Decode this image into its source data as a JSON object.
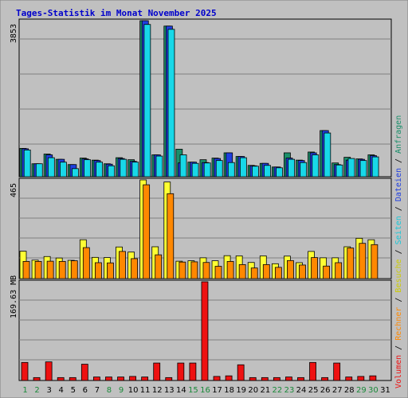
{
  "title": "Tages-Statistik im Monat November 2025",
  "colors": {
    "outer_bg": "#c0c0c0",
    "panel_bg": "#c0c0c0",
    "grid": "#808080",
    "title": "#0000cc",
    "anfragen": "#1a8f6a",
    "dateien": "#1f3fe0",
    "seiten": "#18d8e8",
    "besuche": "#ffff33",
    "rechner": "#ff8800",
    "volumen": "#ee1111",
    "day_weekday": "#000000",
    "day_weekend": "#1a8a3a"
  },
  "legend_right": {
    "volumen": "Volumen",
    "rechner": "Rechner",
    "besuche": "Besuche",
    "seiten": "Seiten",
    "dateien": "Dateien",
    "anfragen": "Anfragen",
    "sep": " / "
  },
  "chart_data": [
    {
      "type": "bar",
      "panel": "top",
      "ymax_label": "3853",
      "ylim": [
        0,
        3853
      ],
      "categories": [
        "1",
        "2",
        "3",
        "4",
        "5",
        "6",
        "7",
        "8",
        "9",
        "10",
        "11",
        "12",
        "13",
        "14",
        "15",
        "16",
        "17",
        "18",
        "19",
        "20",
        "21",
        "22",
        "23",
        "24",
        "25",
        "26",
        "27",
        "28",
        "29",
        "30",
        "31"
      ],
      "series": [
        {
          "name": "Anfragen",
          "values": [
            700,
            320,
            560,
            430,
            300,
            460,
            410,
            320,
            470,
            420,
            3853,
            540,
            3720,
            680,
            360,
            420,
            460,
            590,
            500,
            280,
            330,
            240,
            590,
            410,
            610,
            1140,
            340,
            480,
            440,
            540,
            0
          ]
        },
        {
          "name": "Dateien",
          "values": [
            690,
            320,
            540,
            430,
            300,
            440,
            400,
            310,
            450,
            380,
            3853,
            540,
            3720,
            340,
            360,
            350,
            450,
            590,
            500,
            270,
            330,
            240,
            460,
            400,
            590,
            1140,
            300,
            410,
            430,
            520,
            0
          ]
        },
        {
          "name": "Seiten",
          "values": [
            660,
            320,
            470,
            360,
            200,
            420,
            360,
            270,
            430,
            360,
            3760,
            510,
            3640,
            540,
            330,
            340,
            400,
            350,
            470,
            260,
            280,
            220,
            430,
            350,
            540,
            1080,
            290,
            450,
            400,
            490,
            0
          ]
        }
      ]
    },
    {
      "type": "bar",
      "panel": "middle",
      "ymax_label": "465",
      "ylim": [
        0,
        465
      ],
      "categories": [
        "1",
        "2",
        "3",
        "4",
        "5",
        "6",
        "7",
        "8",
        "9",
        "10",
        "11",
        "12",
        "13",
        "14",
        "15",
        "16",
        "17",
        "18",
        "19",
        "20",
        "21",
        "22",
        "23",
        "24",
        "25",
        "26",
        "27",
        "28",
        "29",
        "30",
        "31"
      ],
      "series": [
        {
          "name": "Besuche",
          "values": [
            129,
            87,
            104,
            97,
            86,
            183,
            100,
            99,
            149,
            125,
            465,
            150,
            455,
            82,
            84,
            98,
            84,
            108,
            107,
            76,
            107,
            70,
            106,
            75,
            128,
            98,
            98,
            150,
            190,
            183,
            0
          ]
        },
        {
          "name": "Rechner",
          "values": [
            81,
            81,
            82,
            81,
            84,
            146,
            75,
            74,
            128,
            94,
            442,
            112,
            400,
            78,
            79,
            76,
            58,
            81,
            66,
            50,
            66,
            53,
            85,
            64,
            99,
            59,
            75,
            144,
            166,
            160,
            0
          ]
        }
      ]
    },
    {
      "type": "bar",
      "panel": "bottom",
      "ymax_label": "169.63 MB",
      "ylim": [
        0,
        169.63
      ],
      "categories": [
        "1",
        "2",
        "3",
        "4",
        "5",
        "6",
        "7",
        "8",
        "9",
        "10",
        "11",
        "12",
        "13",
        "14",
        "15",
        "16",
        "17",
        "18",
        "19",
        "20",
        "21",
        "22",
        "23",
        "24",
        "25",
        "26",
        "27",
        "28",
        "29",
        "30",
        "31"
      ],
      "series": [
        {
          "name": "Volumen",
          "values": [
            31,
            5,
            32,
            5,
            5,
            28,
            6,
            6,
            6,
            7,
            6,
            30,
            5,
            30,
            30,
            169.63,
            7,
            8,
            27,
            5,
            5,
            5,
            6,
            5,
            31,
            5,
            30,
            6,
            7,
            8,
            0
          ]
        }
      ]
    }
  ]
}
